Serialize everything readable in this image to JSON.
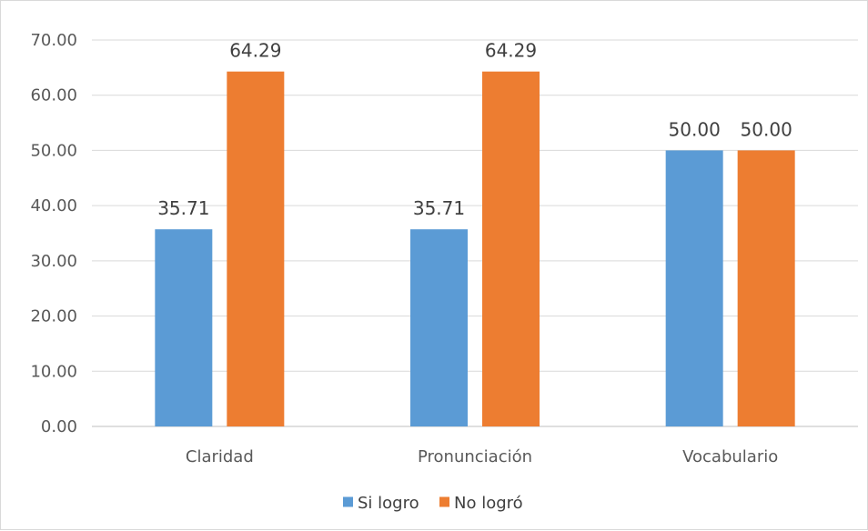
{
  "chart_data": {
    "type": "bar",
    "categories": [
      "Claridad",
      "Pronunciación",
      "Vocabulario"
    ],
    "series": [
      {
        "name": "Si logro",
        "values": [
          35.71,
          35.71,
          50.0
        ],
        "color": "#5B9BD5"
      },
      {
        "name": "No logró",
        "values": [
          64.29,
          64.29,
          50.0
        ],
        "color": "#ED7D31"
      }
    ],
    "ylim": [
      0,
      70
    ],
    "yticks": [
      0,
      10,
      20,
      30,
      40,
      50,
      60,
      70
    ],
    "tick_decimals": 2,
    "value_decimals": 2,
    "grid": true,
    "gridline_color": "#d9d9d9",
    "axis_line_color": "#bfbfbf",
    "legend_position": "bottom",
    "title": "",
    "xlabel": "",
    "ylabel": ""
  }
}
